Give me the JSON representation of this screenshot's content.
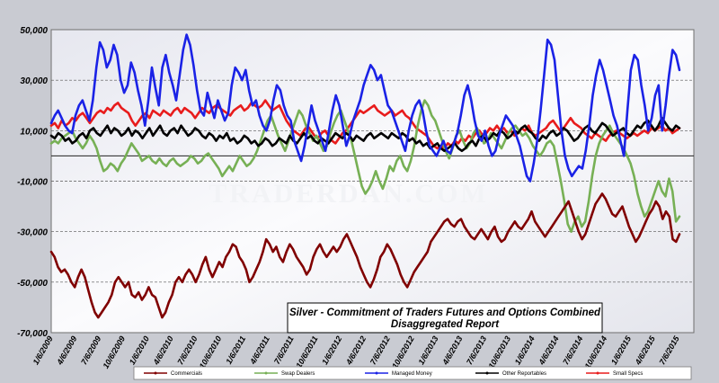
{
  "watermark": "TRADERDAN.COM",
  "chart_data": {
    "type": "line",
    "title_lines": [
      "Silver - Commitment of Traders Futures and Options Combined",
      "Disaggregated  Report"
    ],
    "xlabel": "",
    "ylabel": "",
    "ylim": [
      -70000,
      50000
    ],
    "y_ticks": [
      50000,
      30000,
      10000,
      -10000,
      -30000,
      -50000,
      -70000
    ],
    "y_tick_labels": [
      "50,000",
      "30,000",
      "10,000",
      "-10,000",
      "-30,000",
      "-50,000",
      "-70,000"
    ],
    "x_tick_labels": [
      "1/6/2009",
      "4/6/2009",
      "7/6/2009",
      "10/6/2009",
      "1/6/2010",
      "4/6/2010",
      "7/6/2010",
      "10/6/2010",
      "1/6/2011",
      "4/6/2011",
      "7/6/2011",
      "10/6/2011",
      "1/6/2012",
      "4/6/2012",
      "7/6/2012",
      "10/6/2012",
      "1/6/2013",
      "4/6/2013",
      "7/6/2013",
      "10/6/2013",
      "1/6/2014",
      "4/6/2014",
      "7/6/2014",
      "10/6/2014",
      "1/6/2015",
      "4/6/2015",
      "7/6/2015"
    ],
    "grid": "horizontal dashed",
    "legend_position": "bottom",
    "series": [
      {
        "name": "Commercials",
        "color": "#800000",
        "values": [
          -38000,
          -40000,
          -44000,
          -46000,
          -45000,
          -47000,
          -50000,
          -52000,
          -48000,
          -45000,
          -48000,
          -53000,
          -58000,
          -62000,
          -64000,
          -62000,
          -60000,
          -58000,
          -55000,
          -50000,
          -48000,
          -50000,
          -52000,
          -50000,
          -55000,
          -56000,
          -54000,
          -57000,
          -55000,
          -52000,
          -55000,
          -56000,
          -60000,
          -64000,
          -62000,
          -58000,
          -55000,
          -50000,
          -48000,
          -50000,
          -47000,
          -45000,
          -47000,
          -50000,
          -47000,
          -43000,
          -40000,
          -45000,
          -48000,
          -45000,
          -42000,
          -44000,
          -40000,
          -38000,
          -35000,
          -36000,
          -40000,
          -42000,
          -45000,
          -50000,
          -48000,
          -45000,
          -42000,
          -38000,
          -33000,
          -35000,
          -38000,
          -36000,
          -40000,
          -42000,
          -38000,
          -35000,
          -37000,
          -40000,
          -42000,
          -44000,
          -47000,
          -45000,
          -40000,
          -37000,
          -35000,
          -38000,
          -40000,
          -38000,
          -36000,
          -38000,
          -36000,
          -33000,
          -31000,
          -34000,
          -37000,
          -40000,
          -44000,
          -47000,
          -50000,
          -52000,
          -49000,
          -45000,
          -40000,
          -38000,
          -35000,
          -37000,
          -40000,
          -43000,
          -47000,
          -50000,
          -52000,
          -49000,
          -46000,
          -44000,
          -42000,
          -40000,
          -38000,
          -34000,
          -32000,
          -30000,
          -28000,
          -26000,
          -25000,
          -27000,
          -28000,
          -26000,
          -25000,
          -28000,
          -30000,
          -32000,
          -33000,
          -31000,
          -29000,
          -31000,
          -33000,
          -30000,
          -28000,
          -32000,
          -34000,
          -33000,
          -30000,
          -28000,
          -26000,
          -28000,
          -29000,
          -27000,
          -25000,
          -22000,
          -26000,
          -28000,
          -30000,
          -32000,
          -30000,
          -28000,
          -26000,
          -24000,
          -22000,
          -20000,
          -18000,
          -22000,
          -26000,
          -30000,
          -33000,
          -31000,
          -27000,
          -23000,
          -19000,
          -17000,
          -15000,
          -17000,
          -20000,
          -23000,
          -24000,
          -22000,
          -20000,
          -24000,
          -28000,
          -31000,
          -34000,
          -32000,
          -29000,
          -26000,
          -23000,
          -21000,
          -18000,
          -20000,
          -25000,
          -22000,
          -24000,
          -33000,
          -34000,
          -31000
        ]
      },
      {
        "name": "Swap Dealers",
        "color": "#77b055",
        "values": [
          5000,
          6000,
          5000,
          7000,
          8000,
          9000,
          10000,
          7000,
          5000,
          3000,
          5000,
          8000,
          6000,
          3000,
          -2000,
          -6000,
          -5000,
          -3000,
          -4000,
          -6000,
          -3000,
          -1000,
          2000,
          5000,
          3000,
          1000,
          -2000,
          -1000,
          0,
          -2000,
          -3000,
          -1000,
          -3000,
          -4000,
          -2000,
          -1000,
          -3000,
          -4000,
          -3000,
          -2000,
          0,
          -1000,
          -3000,
          -2000,
          0,
          1000,
          -1000,
          -3000,
          -5000,
          -8000,
          -6000,
          -4000,
          -6000,
          -3000,
          0,
          -2000,
          -4000,
          -3000,
          -1000,
          2000,
          6000,
          10000,
          14000,
          16000,
          12000,
          8000,
          5000,
          2000,
          6000,
          10000,
          14000,
          18000,
          16000,
          12000,
          9000,
          6000,
          8000,
          5000,
          2000,
          4000,
          9000,
          13000,
          16000,
          18000,
          14000,
          10000,
          6000,
          0,
          -6000,
          -12000,
          -15000,
          -13000,
          -10000,
          -6000,
          -10000,
          -13000,
          -9000,
          -4000,
          -6000,
          -2000,
          0,
          -4000,
          -6000,
          -2000,
          4000,
          12000,
          18000,
          22000,
          20000,
          16000,
          14000,
          10000,
          6000,
          2000,
          -1000,
          3000,
          8000,
          10000,
          6000,
          3000,
          5000,
          9000,
          11000,
          8000,
          5000,
          6000,
          9000,
          7000,
          5000,
          3000,
          6000,
          9000,
          11000,
          12000,
          10000,
          8000,
          9000,
          7000,
          4000,
          2000,
          0,
          2000,
          5000,
          6000,
          4000,
          -3000,
          -10000,
          -18000,
          -27000,
          -30000,
          -26000,
          -24000,
          -28000,
          -26000,
          -18000,
          -8000,
          0,
          5000,
          8000,
          10000,
          12000,
          9000,
          7000,
          5000,
          3000,
          0,
          -3000,
          -8000,
          -15000,
          -20000,
          -24000,
          -22000,
          -18000,
          -14000,
          -10000,
          -14000,
          -16000,
          -9000,
          -14000,
          -26000,
          -24000
        ]
      },
      {
        "name": "Managed Money",
        "color": "#1a22e6",
        "values": [
          13000,
          16000,
          18000,
          15000,
          12000,
          10000,
          9000,
          16000,
          20000,
          22000,
          18000,
          14000,
          22000,
          35000,
          45000,
          42000,
          35000,
          38000,
          44000,
          40000,
          30000,
          25000,
          28000,
          37000,
          33000,
          26000,
          20000,
          12000,
          22000,
          35000,
          27000,
          20000,
          35000,
          40000,
          33000,
          28000,
          22000,
          32000,
          42000,
          48000,
          44000,
          36000,
          26000,
          18000,
          16000,
          25000,
          20000,
          15000,
          22000,
          18000,
          14000,
          17000,
          28000,
          35000,
          33000,
          30000,
          34000,
          26000,
          20000,
          22000,
          16000,
          12000,
          10000,
          14000,
          22000,
          28000,
          26000,
          20000,
          16000,
          14000,
          6000,
          2000,
          -2000,
          4000,
          12000,
          20000,
          14000,
          10000,
          6000,
          2000,
          10000,
          18000,
          24000,
          20000,
          12000,
          4000,
          8000,
          14000,
          18000,
          22000,
          28000,
          32000,
          36000,
          34000,
          30000,
          32000,
          26000,
          20000,
          18000,
          14000,
          10000,
          6000,
          2000,
          10000,
          16000,
          20000,
          22000,
          18000,
          10000,
          4000,
          2000,
          0,
          3000,
          6000,
          2000,
          1000,
          5000,
          9000,
          16000,
          24000,
          28000,
          22000,
          14000,
          8000,
          6000,
          10000,
          4000,
          0,
          2000,
          8000,
          12000,
          16000,
          14000,
          12000,
          8000,
          4000,
          -2000,
          -8000,
          -10000,
          -3000,
          6000,
          18000,
          32000,
          46000,
          44000,
          38000,
          24000,
          10000,
          0,
          -5000,
          -8000,
          -6000,
          -4000,
          -5000,
          2000,
          12000,
          24000,
          32000,
          38000,
          34000,
          28000,
          22000,
          16000,
          12000,
          6000,
          0,
          18000,
          34000,
          40000,
          38000,
          28000,
          20000,
          10000,
          15000,
          24000,
          28000,
          10000,
          20000,
          32000,
          42000,
          40000,
          34000
        ]
      },
      {
        "name": "Other Reportables",
        "color": "#000000",
        "values": [
          8000,
          7000,
          9000,
          8000,
          6000,
          7000,
          5000,
          6000,
          8000,
          9000,
          7000,
          10000,
          11000,
          9000,
          8000,
          10000,
          12000,
          9000,
          11000,
          10000,
          8000,
          9000,
          11000,
          8000,
          10000,
          9000,
          7000,
          9000,
          11000,
          8000,
          10000,
          12000,
          9000,
          8000,
          10000,
          11000,
          9000,
          12000,
          10000,
          8000,
          9000,
          11000,
          10000,
          8000,
          7000,
          9000,
          8000,
          6000,
          8000,
          7000,
          9000,
          6000,
          7000,
          5000,
          6000,
          8000,
          7000,
          5000,
          6000,
          4000,
          5000,
          7000,
          6000,
          4000,
          5000,
          7000,
          6000,
          5000,
          8000,
          6000,
          5000,
          7000,
          9000,
          7000,
          8000,
          6000,
          5000,
          7000,
          6000,
          5000,
          7000,
          9000,
          8000,
          7000,
          9000,
          8000,
          6000,
          8000,
          7000,
          6000,
          8000,
          9000,
          7000,
          8000,
          9000,
          8000,
          7000,
          9000,
          8000,
          7000,
          9000,
          8000,
          6000,
          7000,
          5000,
          6000,
          4000,
          5000,
          3000,
          4000,
          5000,
          3000,
          2000,
          3000,
          4000,
          5000,
          3000,
          2000,
          3000,
          5000,
          6000,
          4000,
          7000,
          8000,
          6000,
          7000,
          9000,
          8000,
          10000,
          9000,
          7000,
          8000,
          10000,
          9000,
          11000,
          12000,
          10000,
          9000,
          7000,
          6000,
          8000,
          7000,
          9000,
          10000,
          8000,
          9000,
          11000,
          10000,
          8000,
          6000,
          7000,
          9000,
          11000,
          12000,
          10000,
          9000,
          11000,
          13000,
          12000,
          10000,
          8000,
          9000,
          10000,
          11000,
          9000,
          8000,
          10000,
          12000,
          11000,
          13000,
          14000,
          12000,
          10000,
          12000,
          15000,
          13000,
          11000,
          10000,
          12000,
          11000
        ]
      },
      {
        "name": "Small Specs",
        "color": "#e81c1c",
        "values": [
          12000,
          13000,
          11000,
          14000,
          12000,
          13000,
          15000,
          14000,
          16000,
          17000,
          15000,
          13000,
          15000,
          17000,
          18000,
          17000,
          19000,
          18000,
          20000,
          21000,
          19000,
          18000,
          17000,
          14000,
          12000,
          14000,
          16000,
          17000,
          15000,
          18000,
          17000,
          16000,
          18000,
          17000,
          16000,
          18000,
          19000,
          17000,
          19000,
          18000,
          17000,
          15000,
          17000,
          19000,
          18000,
          17000,
          19000,
          20000,
          19000,
          18000,
          17000,
          16000,
          18000,
          19000,
          20000,
          18000,
          19000,
          21000,
          20000,
          19000,
          20000,
          22000,
          20000,
          18000,
          19000,
          20000,
          17000,
          14000,
          12000,
          10000,
          9000,
          8000,
          10000,
          12000,
          10000,
          8000,
          7000,
          9000,
          10000,
          8000,
          6000,
          5000,
          7000,
          9000,
          10000,
          12000,
          14000,
          16000,
          18000,
          17000,
          18000,
          19000,
          20000,
          18000,
          17000,
          16000,
          17000,
          18000,
          16000,
          17000,
          18000,
          16000,
          15000,
          13000,
          11000,
          10000,
          9000,
          8000,
          6000,
          4000,
          3000,
          4000,
          3000,
          5000,
          4000,
          6000,
          5000,
          7000,
          6000,
          8000,
          7000,
          9000,
          10000,
          8000,
          9000,
          11000,
          10000,
          12000,
          10000,
          11000,
          9000,
          10000,
          8000,
          9000,
          11000,
          10000,
          12000,
          9000,
          8000,
          9000,
          10000,
          11000,
          13000,
          14000,
          12000,
          10000,
          11000,
          13000,
          15000,
          13000,
          12000,
          11000,
          9000,
          8000,
          7000,
          9000,
          8000,
          7000,
          6000,
          8000,
          9000,
          10000,
          9000,
          8000,
          7000,
          8000,
          9000,
          8000,
          9000,
          10000,
          9000,
          11000,
          10000,
          11000,
          12000,
          10000,
          11000,
          9000,
          10000,
          11000
        ]
      }
    ]
  }
}
